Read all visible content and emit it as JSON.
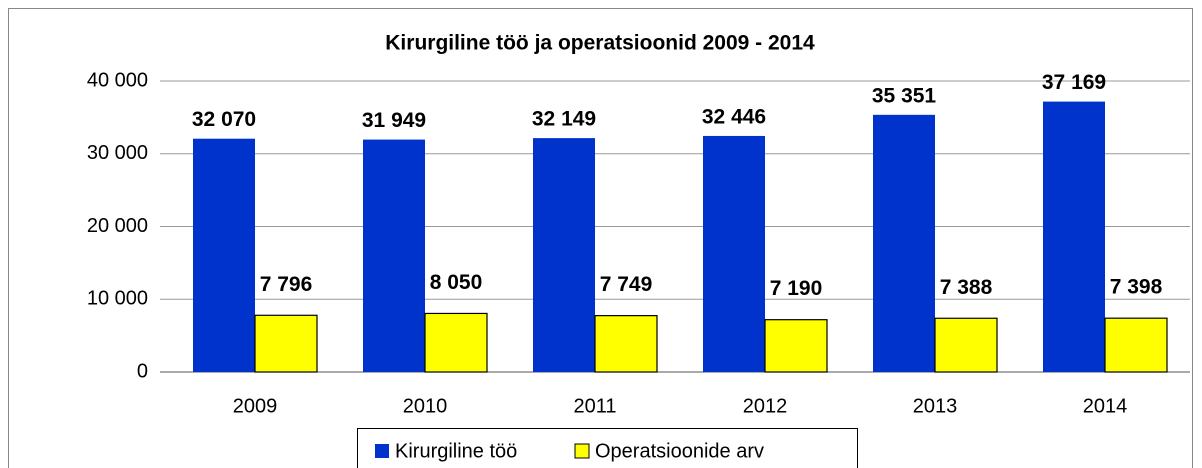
{
  "chart_data": {
    "type": "bar",
    "title": "Kirurgiline töö ja operatsioonid 2009 - 2014",
    "categories": [
      "2009",
      "2010",
      "2011",
      "2012",
      "2013",
      "2014"
    ],
    "series": [
      {
        "name": "Kirurgiline töö",
        "color": "#0033cc",
        "values": [
          32070,
          31949,
          32149,
          32446,
          35351,
          37169
        ],
        "value_labels": [
          "32 070",
          "31 949",
          "32 149",
          "32 446",
          "35 351",
          "37 169"
        ]
      },
      {
        "name": "Operatsioonide arv",
        "color": "#ffff00",
        "values": [
          7796,
          8050,
          7749,
          7190,
          7388,
          7398
        ],
        "value_labels": [
          "7 796",
          "8 050",
          "7 749",
          "7 190",
          "7 388",
          "7 398"
        ]
      }
    ],
    "ylim": [
      0,
      40000
    ],
    "yticks": [
      0,
      {
        "value": 10000,
        "label": "10 000"
      },
      {
        "value": 20000,
        "label": "20 000"
      },
      {
        "value": 30000,
        "label": "30 000"
      },
      {
        "value": 40000,
        "label": "40 000"
      }
    ],
    "grid": true,
    "legend": "bottom"
  }
}
